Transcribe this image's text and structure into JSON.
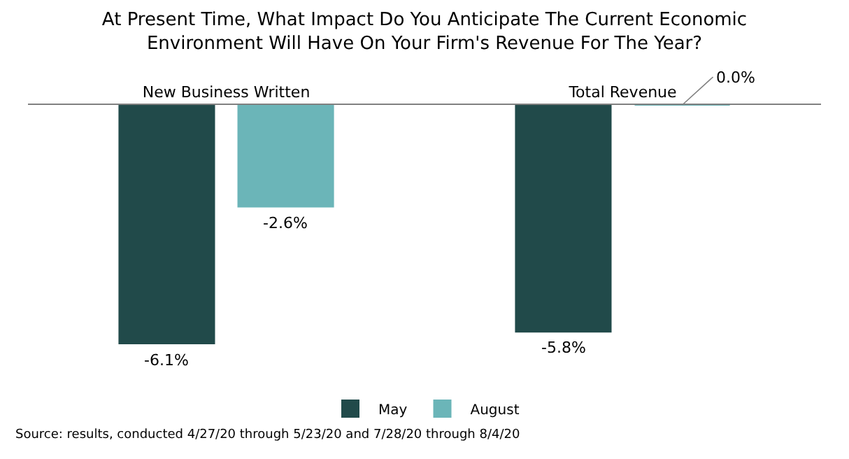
{
  "chart_data": {
    "type": "bar",
    "title": "At Present Time, What Impact Do You Anticipate The Current Economic\nEnvironment Will Have On Your Firm's Revenue For The Year?",
    "categories": [
      "New Business Written",
      "Total Revenue"
    ],
    "relative": false,
    "series": [
      {
        "name": "May",
        "color": "#214a4a",
        "values": [
          -6.1,
          -5.8
        ],
        "value_labels": [
          "-6.1%",
          "-5.8%"
        ]
      },
      {
        "name": "August",
        "color": "#6bb5b8",
        "values": [
          -2.6,
          0.0
        ],
        "value_labels": [
          "-2.6%",
          "0.0%"
        ]
      }
    ],
    "legend": "bottom",
    "annotations": [
      "Source: results, conducted 4/27/20 through 5/23/20 and 7/28/20 through 8/4/20"
    ]
  }
}
